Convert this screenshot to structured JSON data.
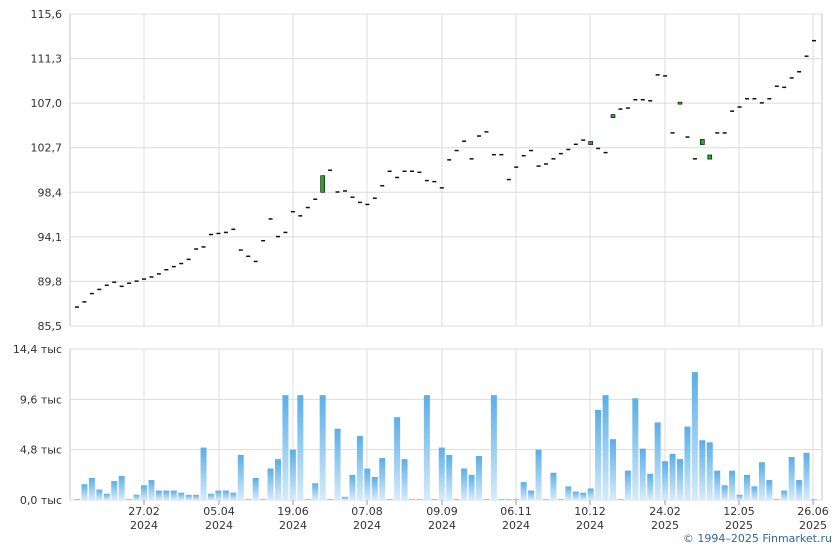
{
  "chart_data": [
    {
      "type": "candlestick",
      "ylim": [
        85.5,
        115.6
      ],
      "yticks": [
        "85,5",
        "89,8",
        "94,1",
        "98,4",
        "102,7",
        "107,0",
        "111,3",
        "115,6"
      ],
      "xticks": [
        {
          "date": "27.02",
          "year": "2024"
        },
        {
          "date": "05.04",
          "year": "2024"
        },
        {
          "date": "19.06",
          "year": "2024"
        },
        {
          "date": "07.08",
          "year": "2024"
        },
        {
          "date": "09.09",
          "year": "2024"
        },
        {
          "date": "06.11",
          "year": "2024"
        },
        {
          "date": "10.12",
          "year": "2024"
        },
        {
          "date": "24.02",
          "year": "2025"
        },
        {
          "date": "12.05",
          "year": "2025"
        },
        {
          "date": "26.06",
          "year": "2025"
        }
      ],
      "grid": true,
      "colors": {
        "up": "#22aa22",
        "down": "#111111"
      },
      "close": [
        87.4,
        87.9,
        88.7,
        89.1,
        89.5,
        89.8,
        89.4,
        89.7,
        89.9,
        90.1,
        90.3,
        90.6,
        91.0,
        91.3,
        91.6,
        92.0,
        93.0,
        93.2,
        94.4,
        94.5,
        94.6,
        94.9,
        92.9,
        92.3,
        91.8,
        93.8,
        95.9,
        94.2,
        94.6,
        96.6,
        96.2,
        97.0,
        97.8,
        100.0,
        100.6,
        98.5,
        98.6,
        98.0,
        97.5,
        97.3,
        97.9,
        99.1,
        100.5,
        99.9,
        100.5,
        100.5,
        100.4,
        99.6,
        99.5,
        98.9,
        101.6,
        102.5,
        103.4,
        101.7,
        103.9,
        104.3,
        102.1,
        102.1,
        99.7,
        100.9,
        102.0,
        102.5,
        101.0,
        101.2,
        101.7,
        102.2,
        102.6,
        103.1,
        103.5,
        103.3,
        102.7,
        102.3,
        105.9,
        106.5,
        106.6,
        107.4,
        107.4,
        107.3,
        109.8,
        109.7,
        104.2,
        107.1,
        103.8,
        101.7,
        103.5,
        102.0,
        104.2,
        104.2,
        106.3,
        106.7,
        107.5,
        107.5,
        107.1,
        107.5,
        108.7,
        108.6,
        109.5,
        110.1,
        111.6,
        113.1
      ],
      "open": [
        87.4,
        87.9,
        88.7,
        89.1,
        89.5,
        89.8,
        89.4,
        89.7,
        89.9,
        90.1,
        90.3,
        90.6,
        91.0,
        91.3,
        91.6,
        92.0,
        93.0,
        93.2,
        94.4,
        94.5,
        94.6,
        94.9,
        92.9,
        92.3,
        91.8,
        93.8,
        95.9,
        94.2,
        94.6,
        96.6,
        96.2,
        97.0,
        97.8,
        98.4,
        100.6,
        98.5,
        98.6,
        98.0,
        97.5,
        97.3,
        97.9,
        99.1,
        100.5,
        99.9,
        100.5,
        100.5,
        100.4,
        99.6,
        99.5,
        98.9,
        101.6,
        102.5,
        103.4,
        101.7,
        103.9,
        104.3,
        102.1,
        102.1,
        99.7,
        100.9,
        102.0,
        102.5,
        101.0,
        101.2,
        101.7,
        102.2,
        102.6,
        103.1,
        103.5,
        103.0,
        102.7,
        102.3,
        105.6,
        106.5,
        106.6,
        107.4,
        107.4,
        107.3,
        109.8,
        109.7,
        104.2,
        106.9,
        103.8,
        101.7,
        103.0,
        101.6,
        104.2,
        104.2,
        106.3,
        106.7,
        107.5,
        107.5,
        107.1,
        107.5,
        108.7,
        108.6,
        109.5,
        110.1,
        111.6,
        113.1
      ]
    },
    {
      "type": "bar",
      "ylim": [
        0,
        14.4
      ],
      "yticks": [
        "0,0 тыс",
        "4,8 тыс",
        "9,6 тыс",
        "14,4 тыс"
      ],
      "ylabel_unit": "тыс",
      "gradient_colors": [
        "#5aaee8",
        "#d6ebfa"
      ],
      "values": [
        0.1,
        1.5,
        2.1,
        1.0,
        0.6,
        1.8,
        2.3,
        0.1,
        0.5,
        1.4,
        1.9,
        0.9,
        0.9,
        0.9,
        0.7,
        0.5,
        0.5,
        5.0,
        0.6,
        0.9,
        0.9,
        0.7,
        4.3,
        0.1,
        2.1,
        0.1,
        3.0,
        3.9,
        10.0,
        4.8,
        10.0,
        0.1,
        1.6,
        10.0,
        0.1,
        6.8,
        0.3,
        2.4,
        6.1,
        3.0,
        2.2,
        4.0,
        0.1,
        7.9,
        3.9,
        0.1,
        0.1,
        10.0,
        0.1,
        5.0,
        4.3,
        0.1,
        3.0,
        2.4,
        4.2,
        0.1,
        10.0,
        0.1,
        0.1,
        0.1,
        1.7,
        0.9,
        4.8,
        0.1,
        2.6,
        0.1,
        1.3,
        0.8,
        0.7,
        1.1,
        8.6,
        10.0,
        5.8,
        0.1,
        2.8,
        9.7,
        4.9,
        2.5,
        7.4,
        3.7,
        4.4,
        3.9,
        7.0,
        12.2,
        5.7,
        5.5,
        2.8,
        1.4,
        2.8,
        0.5,
        2.4,
        1.3,
        3.6,
        1.9,
        0.1,
        0.9,
        4.1,
        1.9,
        4.5,
        0.1
      ]
    }
  ],
  "footer": {
    "copyright": "© 1994–2025 Finmarket.ru"
  }
}
